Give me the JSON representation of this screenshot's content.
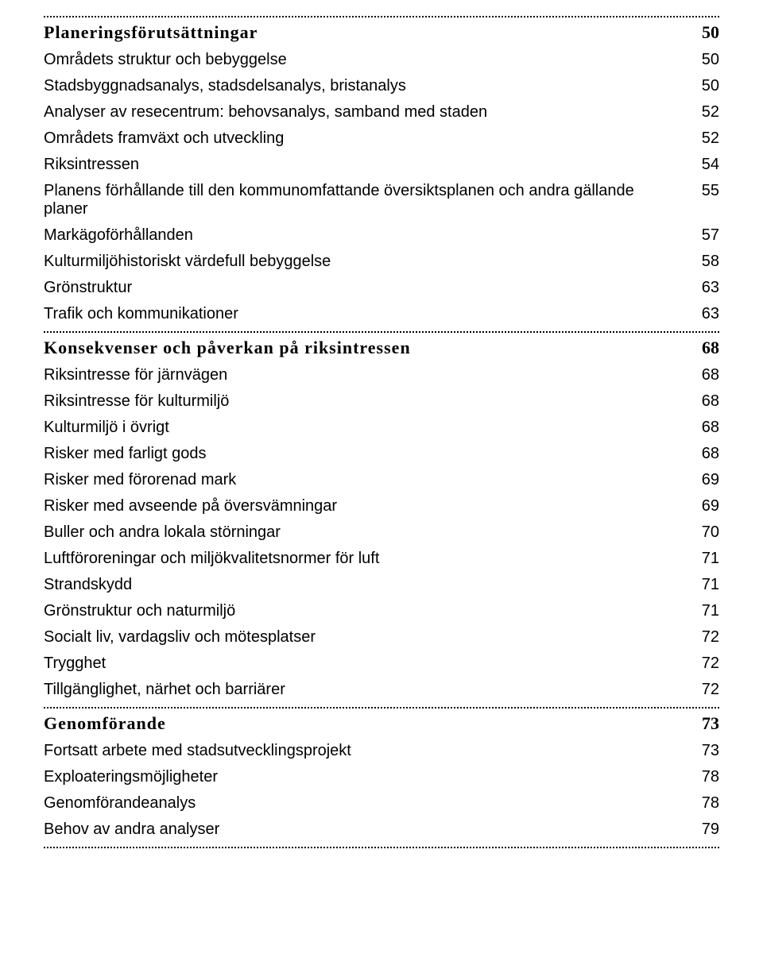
{
  "sections": [
    {
      "heading": "Planeringsförutsättningar",
      "heading_page": "50",
      "items": [
        {
          "label": "Områdets struktur och bebyggelse",
          "page": "50"
        },
        {
          "label": "Stadsbyggnadsanalys, stadsdelsanalys, bristanalys",
          "page": "50"
        },
        {
          "label": "Analyser av resecentrum: behovsanalys, samband med staden",
          "page": "52"
        },
        {
          "label": "Områdets framväxt och utveckling",
          "page": "52"
        },
        {
          "label": "Riksintressen",
          "page": "54"
        },
        {
          "label": "Planens förhållande till den kommunomfattande översiktsplanen och andra gällande planer",
          "page": "55"
        },
        {
          "label": "Markägoförhållanden",
          "page": "57"
        },
        {
          "label": "Kulturmiljöhistoriskt värdefull bebyggelse",
          "page": "58"
        },
        {
          "label": "Grönstruktur",
          "page": "63"
        },
        {
          "label": "Trafik och kommunikationer",
          "page": "63"
        }
      ]
    },
    {
      "heading": "Konsekvenser och påverkan på riksintressen",
      "heading_page": "68",
      "items": [
        {
          "label": "Riksintresse för järnvägen",
          "page": "68"
        },
        {
          "label": "Riksintresse för kulturmiljö",
          "page": "68"
        },
        {
          "label": "Kulturmiljö i övrigt",
          "page": "68"
        },
        {
          "label": "Risker med farligt gods",
          "page": "68"
        },
        {
          "label": "Risker med förorenad mark",
          "page": "69"
        },
        {
          "label": "Risker med avseende på översvämningar",
          "page": "69"
        },
        {
          "label": "Buller och andra lokala störningar",
          "page": "70"
        },
        {
          "label": "Luftföroreningar och miljökvalitetsnormer för luft",
          "page": "71"
        },
        {
          "label": "Strandskydd",
          "page": "71"
        },
        {
          "label": "Grönstruktur och naturmiljö",
          "page": "71"
        },
        {
          "label": "Socialt liv, vardagsliv och mötesplatser",
          "page": "72"
        },
        {
          "label": "Trygghet",
          "page": "72"
        },
        {
          "label": "Tillgänglighet, närhet och barriärer",
          "page": "72"
        }
      ]
    },
    {
      "heading": "Genomförande",
      "heading_page": "73",
      "items": [
        {
          "label": "Fortsatt arbete med stadsutvecklingsprojekt",
          "page": "73"
        },
        {
          "label": "Exploateringsmöjligheter",
          "page": "78"
        },
        {
          "label": "Genomförandeanalys",
          "page": "78"
        },
        {
          "label": "Behov av andra analyser",
          "page": "79"
        }
      ]
    }
  ]
}
